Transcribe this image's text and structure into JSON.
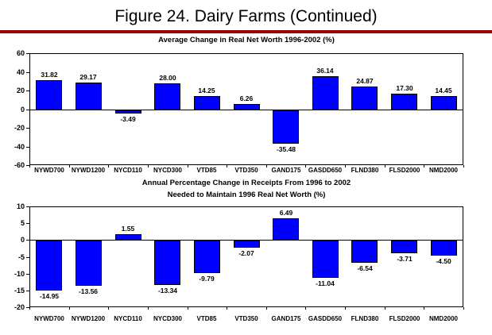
{
  "page": {
    "title": "Figure 24. Dairy Farms (Continued)",
    "rule_color": "#990000"
  },
  "chart_data": [
    {
      "type": "bar",
      "title": "Average Change in Real Net Worth 1996-2002 (%)",
      "title_lines": [
        "Average Change in Real Net Worth 1996-2002 (%)"
      ],
      "categories": [
        "NYWD700",
        "NYWD1200",
        "NYCD110",
        "NYCD300",
        "VTD85",
        "VTD350",
        "GAND175",
        "GASDD650",
        "FLND380",
        "FLSD2000",
        "NMD2000"
      ],
      "values": [
        31.82,
        29.17,
        -3.49,
        28.0,
        14.25,
        6.26,
        -35.48,
        36.14,
        24.87,
        17.3,
        14.45
      ],
      "ylim": [
        -60,
        60
      ],
      "yticks": [
        60,
        40,
        20,
        0,
        -20,
        -40,
        -60
      ],
      "bar_color": "#0000FF",
      "bar_border_color": "#000000",
      "grid": false,
      "legend": "none",
      "value_labels": true,
      "value_label_decimals": 2
    },
    {
      "type": "bar",
      "title": "Annual Percentage Change in Receipts From 1996 to 2002 Needed to Maintain 1996 Real Net Worth (%)",
      "title_lines": [
        "Annual Percentage Change in Receipts From 1996 to 2002",
        "Needed to Maintain 1996 Real Net Worth (%)"
      ],
      "categories": [
        "NYWD700",
        "NYWD1200",
        "NYCD110",
        "NYCD300",
        "VTD85",
        "VTD350",
        "GAND175",
        "GASDD650",
        "FLND380",
        "FLSD2000",
        "NMD2000"
      ],
      "values": [
        -14.95,
        -13.56,
        1.55,
        -13.34,
        -9.79,
        -2.07,
        6.49,
        -11.04,
        -6.54,
        -3.71,
        -4.5
      ],
      "ylim": [
        -20,
        10
      ],
      "yticks": [
        10,
        5,
        0,
        -5,
        -10,
        -15,
        -20
      ],
      "bar_color": "#0000FF",
      "bar_border_color": "#000000",
      "grid": false,
      "legend": "none",
      "value_labels": true,
      "value_label_decimals": 2
    }
  ]
}
